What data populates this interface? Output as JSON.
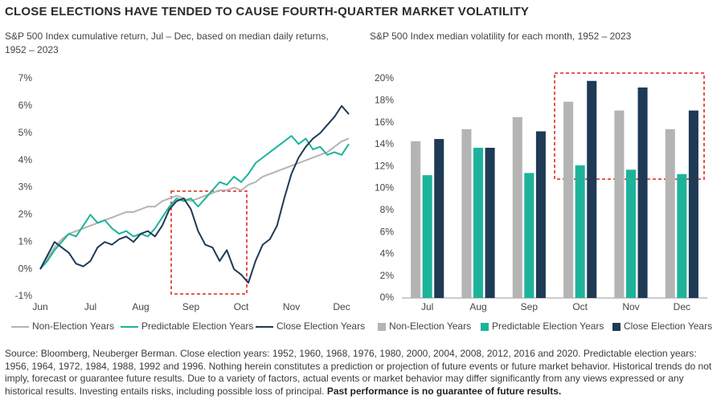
{
  "title": "CLOSE ELECTIONS HAVE TENDED TO CAUSE FOURTH-QUARTER MARKET VOLATILITY",
  "chart_data": [
    {
      "type": "line",
      "subtitle": "S&P 500 Index cumulative return, Jul – Dec, based on median daily returns, 1952 – 2023",
      "categories": [
        "Jun",
        null,
        null,
        null,
        null,
        null,
        null,
        "Jul",
        null,
        null,
        null,
        null,
        null,
        null,
        "Aug",
        null,
        null,
        null,
        null,
        null,
        null,
        "Sep",
        null,
        null,
        null,
        null,
        null,
        null,
        "Oct",
        null,
        null,
        null,
        null,
        null,
        null,
        "Nov",
        null,
        null,
        null,
        null,
        null,
        null,
        "Dec",
        null
      ],
      "series": [
        {
          "name": "Non-Election Years",
          "color": "#b4b4b4",
          "values": [
            0,
            0.4,
            0.8,
            1.1,
            1.3,
            1.4,
            1.5,
            1.6,
            1.7,
            1.8,
            1.9,
            2.0,
            2.1,
            2.1,
            2.2,
            2.3,
            2.3,
            2.5,
            2.6,
            2.7,
            2.6,
            2.5,
            2.6,
            2.7,
            2.8,
            2.9,
            2.9,
            3.0,
            2.9,
            3.1,
            3.2,
            3.4,
            3.5,
            3.6,
            3.7,
            3.8,
            3.9,
            4.0,
            4.1,
            4.2,
            4.3,
            4.5,
            4.7,
            4.8
          ]
        },
        {
          "name": "Predictable Election Years",
          "color": "#1db39a",
          "values": [
            0,
            0.3,
            0.7,
            1.0,
            1.3,
            1.2,
            1.6,
            2.0,
            1.7,
            1.8,
            1.5,
            1.3,
            1.4,
            1.2,
            1.3,
            1.2,
            1.5,
            1.9,
            2.3,
            2.6,
            2.5,
            2.6,
            2.3,
            2.6,
            2.9,
            3.2,
            3.1,
            3.4,
            3.2,
            3.5,
            3.9,
            4.1,
            4.3,
            4.5,
            4.7,
            4.9,
            4.6,
            4.8,
            4.4,
            4.5,
            4.2,
            4.3,
            4.2,
            4.6
          ]
        },
        {
          "name": "Close Election Years",
          "color": "#1e3a55",
          "values": [
            0,
            0.5,
            1.0,
            0.8,
            0.6,
            0.2,
            0.1,
            0.3,
            0.8,
            1.0,
            0.9,
            1.1,
            1.2,
            1.0,
            1.3,
            1.4,
            1.2,
            1.6,
            2.2,
            2.5,
            2.6,
            2.2,
            1.4,
            0.9,
            0.8,
            0.3,
            0.7,
            0.0,
            -0.2,
            -0.5,
            0.3,
            0.9,
            1.1,
            1.6,
            2.6,
            3.5,
            4.1,
            4.5,
            4.8,
            5.0,
            5.3,
            5.6,
            6.0,
            5.7
          ]
        }
      ],
      "ylim": [
        -1,
        7
      ],
      "yticks": [
        {
          "value": -1,
          "label": "-1%"
        },
        {
          "value": 0,
          "label": "0%"
        },
        {
          "value": 1,
          "label": "1%"
        },
        {
          "value": 2,
          "label": "2%"
        },
        {
          "value": 3,
          "label": "3%"
        },
        {
          "value": 4,
          "label": "4%"
        },
        {
          "value": 5,
          "label": "5%"
        },
        {
          "value": 6,
          "label": "6%"
        },
        {
          "value": 7,
          "label": "7%"
        }
      ],
      "grid": false,
      "legend": "bottom"
    },
    {
      "type": "bar",
      "subtitle": "S&P 500 Index median volatility for each month, 1952 – 2023",
      "categories": [
        "Jul",
        "Aug",
        "Sep",
        "Oct",
        "Nov",
        "Dec"
      ],
      "series": [
        {
          "name": "Non-Election Years",
          "color": "#b4b4b4",
          "values": [
            14.3,
            15.4,
            16.5,
            17.9,
            17.1,
            15.4
          ]
        },
        {
          "name": "Predictable Election Years",
          "color": "#1db39a",
          "values": [
            11.2,
            13.7,
            11.4,
            12.1,
            11.7,
            11.3
          ]
        },
        {
          "name": "Close Election Years",
          "color": "#1e3a55",
          "values": [
            14.5,
            13.7,
            15.2,
            19.8,
            19.2,
            17.1
          ]
        }
      ],
      "ylim": [
        0,
        20
      ],
      "yticks": [
        {
          "value": 0,
          "label": "0%"
        },
        {
          "value": 2,
          "label": "2%"
        },
        {
          "value": 4,
          "label": "4%"
        },
        {
          "value": 6,
          "label": "6%"
        },
        {
          "value": 8,
          "label": "8%"
        },
        {
          "value": 10,
          "label": "10%"
        },
        {
          "value": 12,
          "label": "12%"
        },
        {
          "value": 14,
          "label": "14%"
        },
        {
          "value": 16,
          "label": "16%"
        },
        {
          "value": 18,
          "label": "18%"
        },
        {
          "value": 20,
          "label": "20%"
        }
      ],
      "grid": false,
      "legend": "bottom"
    }
  ],
  "footnote": {
    "text": "Source: Bloomberg, Neuberger Berman. Close election years: 1952, 1960, 1968, 1976, 1980, 2000, 2004, 2008, 2012, 2016 and 2020. Predictable election years: 1956, 1964, 1972, 1984, 1988, 1992 and 1996. Nothing herein constitutes a prediction or projection of future events or future market behavior. Historical trends do not imply, forecast or guarantee future results. Due to a variety of factors, actual events or market behavior may differ significantly from any views expressed or any historical results. Investing entails risks, including possible loss of principal.",
    "bold": "Past performance is no guarantee of future results."
  }
}
